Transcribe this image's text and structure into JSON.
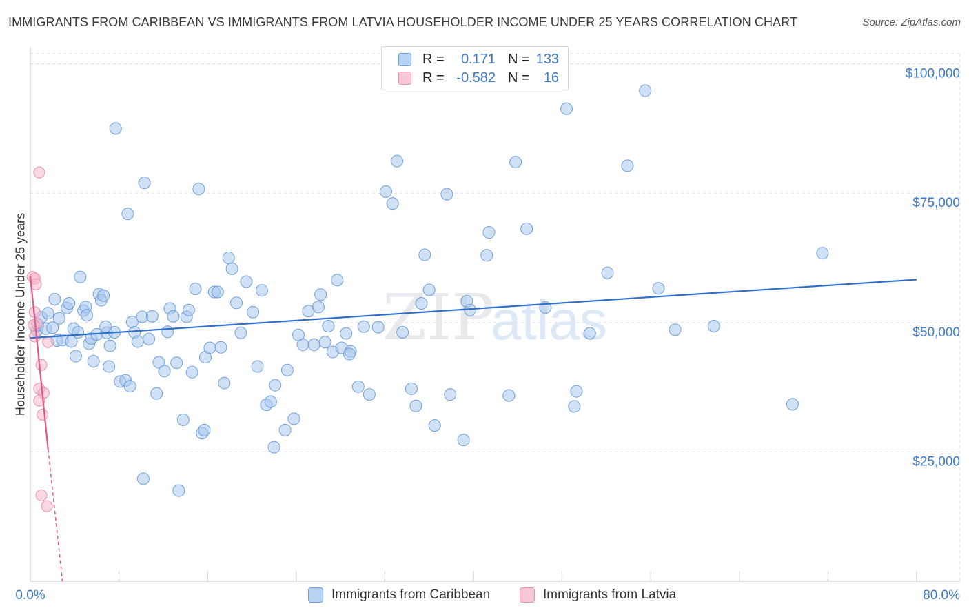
{
  "title": "IMMIGRANTS FROM CARIBBEAN VS IMMIGRANTS FROM LATVIA HOUSEHOLDER INCOME UNDER 25 YEARS CORRELATION CHART",
  "source": "Source: ZipAtlas.com",
  "watermark": {
    "zip": "ZIP",
    "atlas": "atlas"
  },
  "legend": {
    "rows": [
      {
        "r_label": "R =",
        "r_value": "0.171",
        "n_label": "N =",
        "n_value": "133"
      },
      {
        "r_label": "R =",
        "r_value": "-0.582",
        "n_label": "N =",
        "n_value": "16"
      }
    ]
  },
  "bottom_legend": {
    "caribbean": "Immigrants from Caribbean",
    "latvia": "Immigrants from Latvia"
  },
  "colors": {
    "caribbean_fill": "#a9c8ef",
    "caribbean_stroke": "#6f9fd8",
    "caribbean_line": "#2f6fcb",
    "latvia_fill": "#f6b8cb",
    "latvia_stroke": "#ea8fac",
    "latvia_line": "#e0578a",
    "axis_text": "#3b78c9",
    "grid": "#d8dde3"
  },
  "chart_data": {
    "type": "scatter",
    "xlabel": "",
    "ylabel": "Householder Income Under 25 years",
    "xlim": [
      0,
      80
    ],
    "ylim": [
      0,
      103000
    ],
    "x_tick_labels": [
      "0.0%",
      "80.0%"
    ],
    "y_ticks": [
      25000,
      50000,
      75000,
      100000
    ],
    "y_tick_labels": [
      "$25,000",
      "$50,000",
      "$75,000",
      "$100,000"
    ],
    "grid": true,
    "legend_position": "top-center",
    "series": [
      {
        "name": "Immigrants from Caribbean",
        "trend": {
          "x": [
            0,
            80
          ],
          "y": [
            47000,
            58300
          ]
        },
        "points": [
          [
            7.7,
            87500
          ],
          [
            0.6,
            48500
          ],
          [
            0.7,
            49500
          ],
          [
            1.0,
            51000
          ],
          [
            1.4,
            48800
          ],
          [
            1.6,
            51800
          ],
          [
            2.0,
            49000
          ],
          [
            2.2,
            54500
          ],
          [
            2.4,
            46500
          ],
          [
            2.6,
            50800
          ],
          [
            2.9,
            46600
          ],
          [
            3.3,
            52800
          ],
          [
            3.5,
            53700
          ],
          [
            3.9,
            48800
          ],
          [
            4.1,
            43500
          ],
          [
            4.3,
            48100
          ],
          [
            4.5,
            58800
          ],
          [
            4.8,
            52300
          ],
          [
            5.0,
            53000
          ],
          [
            5.3,
            45900
          ],
          [
            5.5,
            46900
          ],
          [
            5.7,
            42500
          ],
          [
            6.0,
            47700
          ],
          [
            6.2,
            55500
          ],
          [
            6.4,
            54300
          ],
          [
            6.6,
            55200
          ],
          [
            6.9,
            48000
          ],
          [
            7.1,
            41500
          ],
          [
            7.2,
            45500
          ],
          [
            7.6,
            48100
          ],
          [
            8.1,
            38600
          ],
          [
            8.6,
            38800
          ],
          [
            8.8,
            71000
          ],
          [
            9.2,
            50100
          ],
          [
            9.4,
            48100
          ],
          [
            9.7,
            46300
          ],
          [
            10.1,
            51100
          ],
          [
            10.3,
            77000
          ],
          [
            10.7,
            46800
          ],
          [
            11.0,
            51200
          ],
          [
            11.4,
            36300
          ],
          [
            11.6,
            42300
          ],
          [
            12.1,
            40600
          ],
          [
            12.4,
            48200
          ],
          [
            12.6,
            52700
          ],
          [
            12.9,
            51200
          ],
          [
            13.2,
            42200
          ],
          [
            13.8,
            31200
          ],
          [
            14.1,
            51100
          ],
          [
            14.3,
            52400
          ],
          [
            14.6,
            40400
          ],
          [
            14.9,
            56500
          ],
          [
            15.2,
            75800
          ],
          [
            15.5,
            28600
          ],
          [
            15.8,
            43300
          ],
          [
            16.2,
            45100
          ],
          [
            16.6,
            55900
          ],
          [
            16.9,
            55900
          ],
          [
            17.2,
            45200
          ],
          [
            17.5,
            38300
          ],
          [
            17.9,
            62500
          ],
          [
            18.2,
            60400
          ],
          [
            18.6,
            53800
          ],
          [
            19.0,
            48000
          ],
          [
            19.5,
            57900
          ],
          [
            20.1,
            52000
          ],
          [
            20.5,
            41500
          ],
          [
            20.9,
            56200
          ],
          [
            21.3,
            34100
          ],
          [
            21.7,
            34700
          ],
          [
            22.1,
            37900
          ],
          [
            23.2,
            40800
          ],
          [
            23.8,
            31400
          ],
          [
            24.2,
            47600
          ],
          [
            24.6,
            45700
          ],
          [
            25.1,
            52200
          ],
          [
            25.6,
            45700
          ],
          [
            26.0,
            53000
          ],
          [
            26.2,
            55400
          ],
          [
            26.6,
            46200
          ],
          [
            26.9,
            49300
          ],
          [
            27.3,
            44300
          ],
          [
            27.7,
            58200
          ],
          [
            28.1,
            45100
          ],
          [
            28.5,
            47900
          ],
          [
            28.9,
            44400
          ],
          [
            29.6,
            37600
          ],
          [
            30.1,
            49200
          ],
          [
            30.6,
            36100
          ],
          [
            31.4,
            49100
          ],
          [
            32.1,
            75300
          ],
          [
            32.7,
            73000
          ],
          [
            33.1,
            81200
          ],
          [
            33.6,
            48100
          ],
          [
            34.4,
            37200
          ],
          [
            34.8,
            33900
          ],
          [
            35.3,
            53700
          ],
          [
            35.6,
            63100
          ],
          [
            36.0,
            56300
          ],
          [
            36.5,
            30100
          ],
          [
            37.6,
            74800
          ],
          [
            37.9,
            36100
          ],
          [
            39.1,
            27300
          ],
          [
            39.4,
            54100
          ],
          [
            39.7,
            52400
          ],
          [
            41.2,
            63000
          ],
          [
            41.4,
            67400
          ],
          [
            43.2,
            35900
          ],
          [
            43.8,
            81000
          ],
          [
            44.8,
            68100
          ],
          [
            46.5,
            52900
          ],
          [
            48.4,
            91300
          ],
          [
            49.1,
            33800
          ],
          [
            49.3,
            36700
          ],
          [
            50.5,
            47900
          ],
          [
            52.1,
            59600
          ],
          [
            53.9,
            80300
          ],
          [
            55.5,
            94800
          ],
          [
            56.7,
            56600
          ],
          [
            58.2,
            48600
          ],
          [
            61.7,
            49300
          ],
          [
            68.8,
            34200
          ],
          [
            71.5,
            63400
          ],
          [
            28.8,
            43900
          ],
          [
            15.7,
            29200
          ],
          [
            22.0,
            25900
          ],
          [
            23.0,
            29200
          ],
          [
            10.2,
            19800
          ],
          [
            13.4,
            17500
          ],
          [
            9.0,
            37700
          ],
          [
            5.1,
            51400
          ],
          [
            3.7,
            46300
          ],
          [
            6.8,
            49200
          ]
        ]
      },
      {
        "name": "Immigrants from Latvia",
        "trend": {
          "x": [
            0,
            1.6
          ],
          "y": [
            59000,
            25500
          ]
        },
        "trend_dashed_extension": {
          "x": [
            1.6,
            2.9
          ],
          "y": [
            25500,
            -2000
          ]
        },
        "points": [
          [
            0.8,
            79000
          ],
          [
            0.2,
            58800
          ],
          [
            0.4,
            58500
          ],
          [
            0.5,
            57400
          ],
          [
            0.4,
            52000
          ],
          [
            0.6,
            49800
          ],
          [
            0.4,
            47300
          ],
          [
            1.6,
            46200
          ],
          [
            1.0,
            41800
          ],
          [
            0.8,
            37200
          ],
          [
            1.2,
            36400
          ],
          [
            0.8,
            34900
          ],
          [
            1.1,
            32200
          ],
          [
            1.0,
            16600
          ],
          [
            1.5,
            14500
          ],
          [
            0.3,
            49500
          ]
        ]
      }
    ]
  }
}
